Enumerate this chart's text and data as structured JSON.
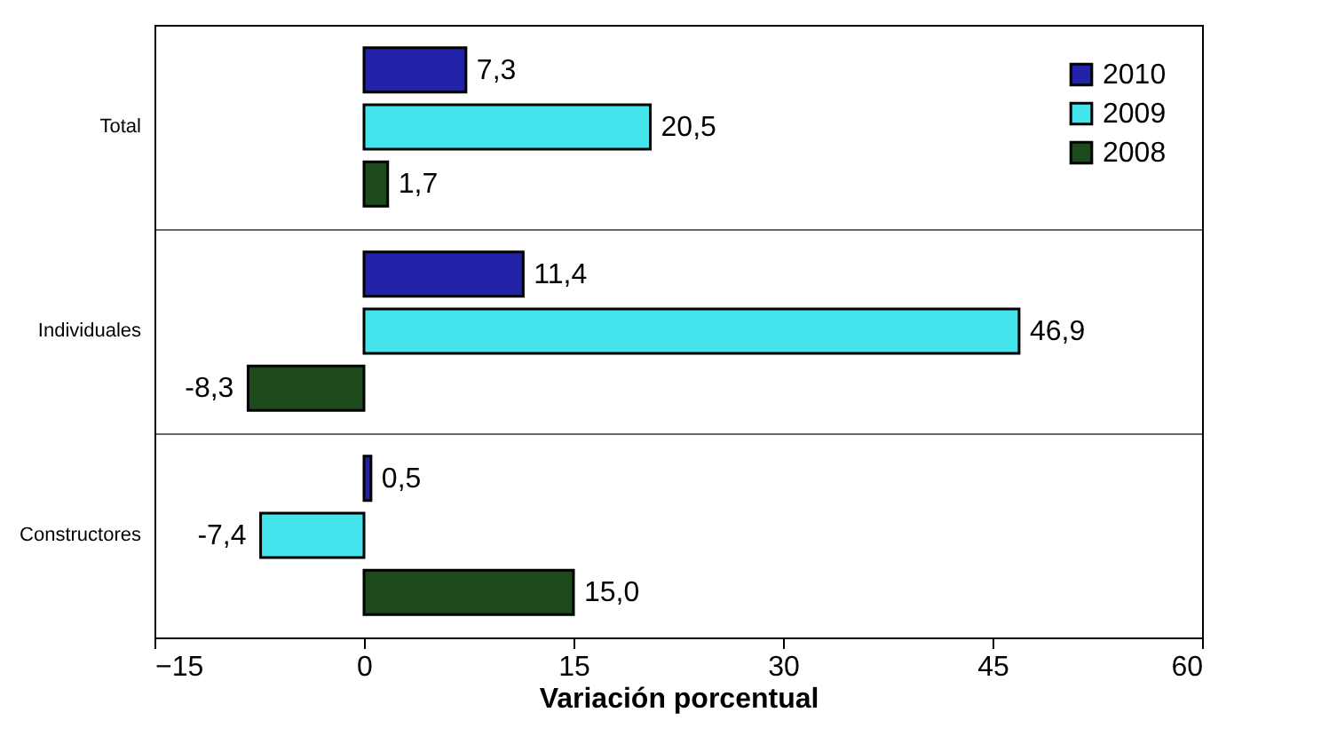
{
  "chart_data": {
    "type": "bar",
    "orientation": "horizontal",
    "xlabel": "Variación porcentual",
    "categories": [
      "Total",
      "Individuales",
      "Constructores"
    ],
    "series": [
      {
        "name": "2010",
        "color": "#2222a8",
        "values": [
          7.3,
          11.4,
          0.5
        ],
        "value_labels": [
          "7,3",
          "11,4",
          "0,5"
        ]
      },
      {
        "name": "2009",
        "color": "#44e4ec",
        "values": [
          20.5,
          46.9,
          -7.4
        ],
        "value_labels": [
          "20,5",
          "46,9",
          "-7,4"
        ]
      },
      {
        "name": "2008",
        "color": "#1c4a1c",
        "values": [
          1.7,
          -8.3,
          15.0
        ],
        "value_labels": [
          "1,7",
          "-8,3",
          "15,0"
        ]
      }
    ],
    "xlim": [
      -15,
      60
    ],
    "xticks": [
      -15,
      0,
      15,
      30,
      45,
      60
    ],
    "grid": "y",
    "legend": "top right"
  }
}
